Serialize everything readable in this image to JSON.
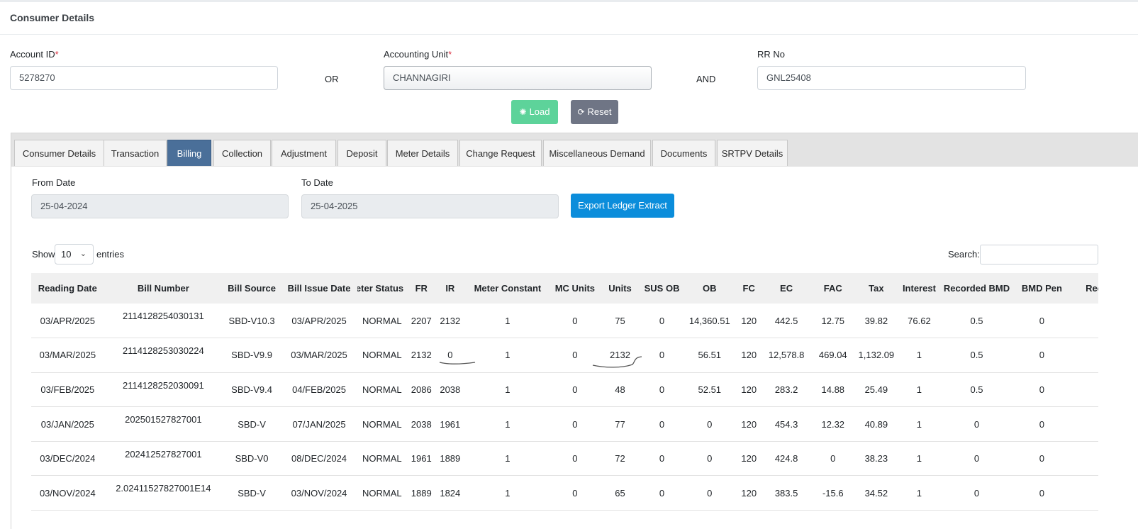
{
  "page_title": "Consumer Details",
  "form": {
    "account_id": {
      "label": "Account ID",
      "required": "*",
      "value": "5278270"
    },
    "or_label": "OR",
    "accounting_unit": {
      "label": "Accounting Unit",
      "required": "*",
      "value": "CHANNAGIRI"
    },
    "and_label": "AND",
    "rr_no": {
      "label": "RR No",
      "value": "GNL25408"
    },
    "load_label": "Load",
    "reset_label": "Reset"
  },
  "tabs": [
    {
      "label": "Consumer Details"
    },
    {
      "label": "Transaction"
    },
    {
      "label": "Billing",
      "active": true
    },
    {
      "label": "Collection"
    },
    {
      "label": "Adjustment"
    },
    {
      "label": "Deposit"
    },
    {
      "label": "Meter Details"
    },
    {
      "label": "Change Request"
    },
    {
      "label": "Miscellaneous Demand"
    },
    {
      "label": "Documents"
    },
    {
      "label": "SRTPV Details"
    }
  ],
  "billing": {
    "from_date_label": "From Date",
    "from_date": "25-04-2024",
    "to_date_label": "To Date",
    "to_date": "25-04-2025",
    "export_label": "Export Ledger Extract",
    "show_label": "Show",
    "page_length": "10",
    "entries_label": "entries",
    "search_label": "Search:",
    "search_value": "",
    "columns": [
      "Reading Date",
      "Bill Number",
      "Bill Source",
      "Bill Issue Date",
      "eter Status",
      "FR",
      "IR",
      "Meter Constant",
      "MC Units",
      "Units",
      "SUS OB",
      "OB",
      "FC",
      "EC",
      "FAC",
      "Tax",
      "Interest",
      "Recorded BMD",
      "BMD Pen",
      "Reco"
    ],
    "rows": [
      [
        "03/APR/2025",
        "2114128254030131",
        "SBD-V10.3",
        "03/APR/2025",
        "NORMAL",
        "2207",
        "2132",
        "1",
        "0",
        "75",
        "0",
        "14,360.51",
        "120",
        "442.5",
        "12.75",
        "39.82",
        "76.62",
        "0.5",
        "0",
        ""
      ],
      [
        "03/MAR/2025",
        "2114128253030224",
        "SBD-V9.9",
        "03/MAR/2025",
        "NORMAL",
        "2132",
        "0",
        "1",
        "0",
        "2132",
        "0",
        "56.51",
        "120",
        "12,578.8",
        "469.04",
        "1,132.09",
        "1",
        "0.5",
        "0",
        ""
      ],
      [
        "03/FEB/2025",
        "2114128252030091",
        "SBD-V9.4",
        "04/FEB/2025",
        "NORMAL",
        "2086",
        "2038",
        "1",
        "0",
        "48",
        "0",
        "52.51",
        "120",
        "283.2",
        "14.88",
        "25.49",
        "1",
        "0.5",
        "0",
        ""
      ],
      [
        "03/JAN/2025",
        "202501527827001",
        "SBD-V",
        "07/JAN/2025",
        "NORMAL",
        "2038",
        "1961",
        "1",
        "0",
        "77",
        "0",
        "0",
        "120",
        "454.3",
        "12.32",
        "40.89",
        "1",
        "0",
        "0",
        ""
      ],
      [
        "03/DEC/2024",
        "202412527827001",
        "SBD-V0",
        "08/DEC/2024",
        "NORMAL",
        "1961",
        "1889",
        "1",
        "0",
        "72",
        "0",
        "0",
        "120",
        "424.8",
        "0",
        "38.23",
        "1",
        "0",
        "0",
        ""
      ],
      [
        "03/NOV/2024",
        "2.02411527827001E14",
        "SBD-V",
        "03/NOV/2024",
        "NORMAL",
        "1889",
        "1824",
        "1",
        "0",
        "65",
        "0",
        "0",
        "120",
        "383.5",
        "-15.6",
        "34.52",
        "1",
        "0",
        "0",
        ""
      ]
    ]
  }
}
